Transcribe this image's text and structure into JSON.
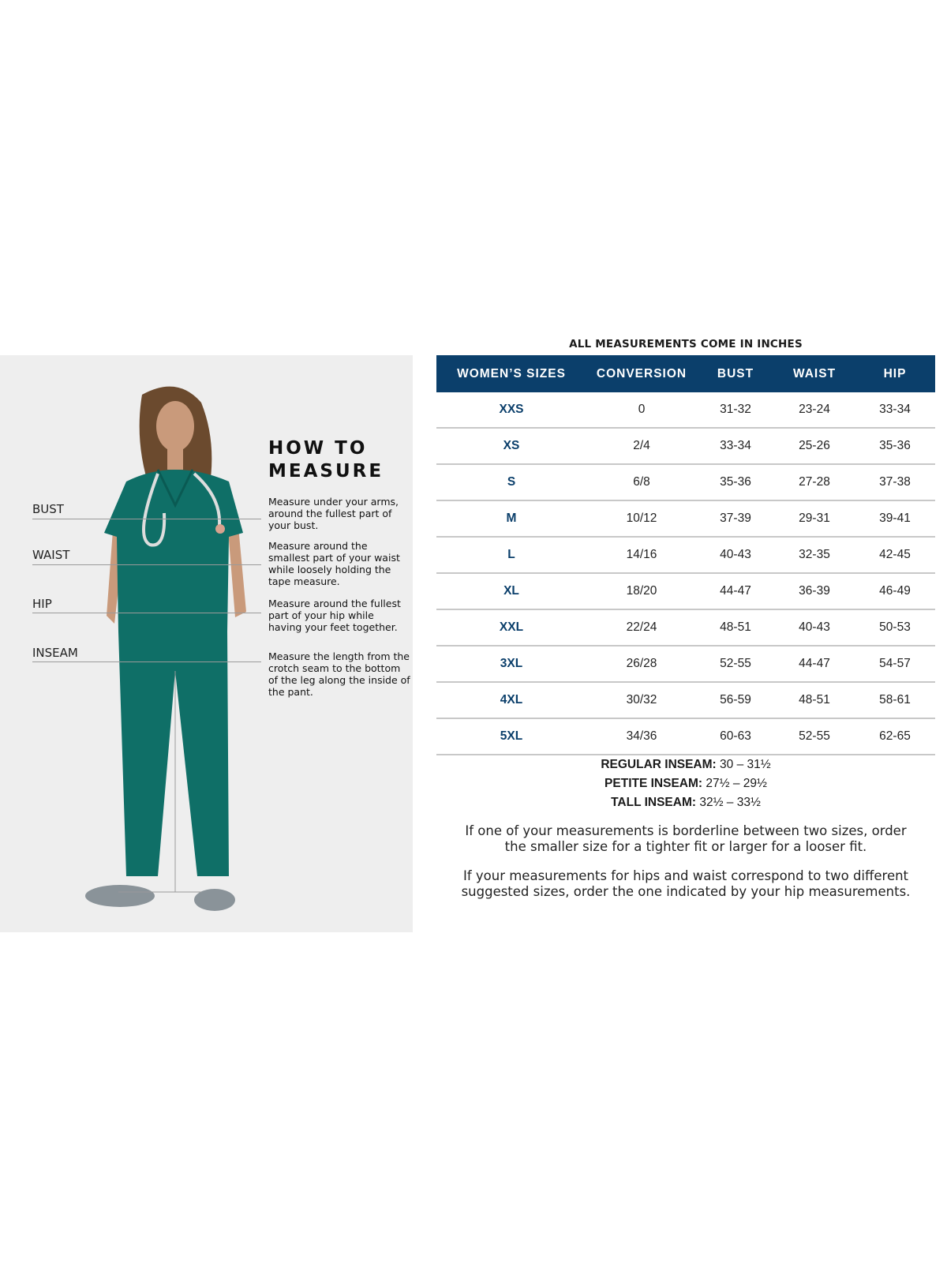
{
  "guide": {
    "title_line1": "HOW TO",
    "title_line2": "MEASURE",
    "measures": [
      {
        "label": "BUST",
        "description": "Measure under your arms, around the fullest part of your bust."
      },
      {
        "label": "WAIST",
        "description": "Measure around the smallest part of your waist while loosely holding the tape measure."
      },
      {
        "label": "HIP",
        "description": "Measure around the fullest part of your hip while having your feet together."
      },
      {
        "label": "INSEAM",
        "description": "Measure the length from the crotch seam to the bottom of the leg along the inside of the pant."
      }
    ]
  },
  "chart": {
    "caption": "ALL MEASUREMENTS COME IN INCHES",
    "header_color": "#0b3f6b",
    "columns": [
      "WOMEN’S SIZES",
      "CONVERSION",
      "BUST",
      "WAIST",
      "HIP"
    ],
    "rows": [
      [
        "XXS",
        "0",
        "31-32",
        "23-24",
        "33-34"
      ],
      [
        "XS",
        "2/4",
        "33-34",
        "25-26",
        "35-36"
      ],
      [
        "S",
        "6/8",
        "35-36",
        "27-28",
        "37-38"
      ],
      [
        "M",
        "10/12",
        "37-39",
        "29-31",
        "39-41"
      ],
      [
        "L",
        "14/16",
        "40-43",
        "32-35",
        "42-45"
      ],
      [
        "XL",
        "18/20",
        "44-47",
        "36-39",
        "46-49"
      ],
      [
        "XXL",
        "22/24",
        "48-51",
        "40-43",
        "50-53"
      ],
      [
        "3XL",
        "26/28",
        "52-55",
        "44-47",
        "54-57"
      ],
      [
        "4XL",
        "30/32",
        "56-59",
        "48-51",
        "58-61"
      ],
      [
        "5XL",
        "34/36",
        "60-63",
        "52-55",
        "62-65"
      ]
    ]
  },
  "inseams": [
    {
      "label": "REGULAR INSEAM:",
      "value": "30  – 31½"
    },
    {
      "label": "PETITE INSEAM:",
      "value": "27½ – 29½"
    },
    {
      "label": "TALL INSEAM:",
      "value": "32½ – 33½"
    }
  ],
  "notes": [
    "If one of your measurements is borderline between two sizes, order the smaller size for a tighter fit or larger for a looser fit.",
    "If your measurements for hips and waist correspond to two different suggested sizes, order the one indicated by your hip measurements."
  ]
}
